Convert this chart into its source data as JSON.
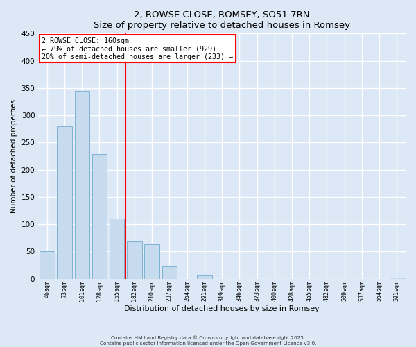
{
  "title": "2, ROWSE CLOSE, ROMSEY, SO51 7RN",
  "subtitle": "Size of property relative to detached houses in Romsey",
  "xlabel": "Distribution of detached houses by size in Romsey",
  "ylabel": "Number of detached properties",
  "bar_labels": [
    "46sqm",
    "73sqm",
    "101sqm",
    "128sqm",
    "155sqm",
    "182sqm",
    "210sqm",
    "237sqm",
    "264sqm",
    "291sqm",
    "319sqm",
    "346sqm",
    "373sqm",
    "400sqm",
    "428sqm",
    "455sqm",
    "482sqm",
    "509sqm",
    "537sqm",
    "564sqm",
    "591sqm"
  ],
  "bar_values": [
    51,
    280,
    345,
    229,
    110,
    70,
    63,
    22,
    0,
    7,
    0,
    0,
    0,
    0,
    0,
    0,
    0,
    0,
    0,
    0,
    2
  ],
  "bar_color": "#c6dcee",
  "bar_edge_color": "#7fb3d3",
  "vline_x": 4.5,
  "vline_color": "red",
  "annotation_title": "2 ROWSE CLOSE: 160sqm",
  "annotation_line1": "← 79% of detached houses are smaller (929)",
  "annotation_line2": "20% of semi-detached houses are larger (233) →",
  "box_color": "red",
  "ylim": [
    0,
    450
  ],
  "yticks": [
    0,
    50,
    100,
    150,
    200,
    250,
    300,
    350,
    400,
    450
  ],
  "background_color": "#dce8f5",
  "plot_bg_color": "#dce8f5",
  "footer_line1": "Contains HM Land Registry data © Crown copyright and database right 2025.",
  "footer_line2": "Contains public sector information licensed under the Open Government Licence v3.0."
}
